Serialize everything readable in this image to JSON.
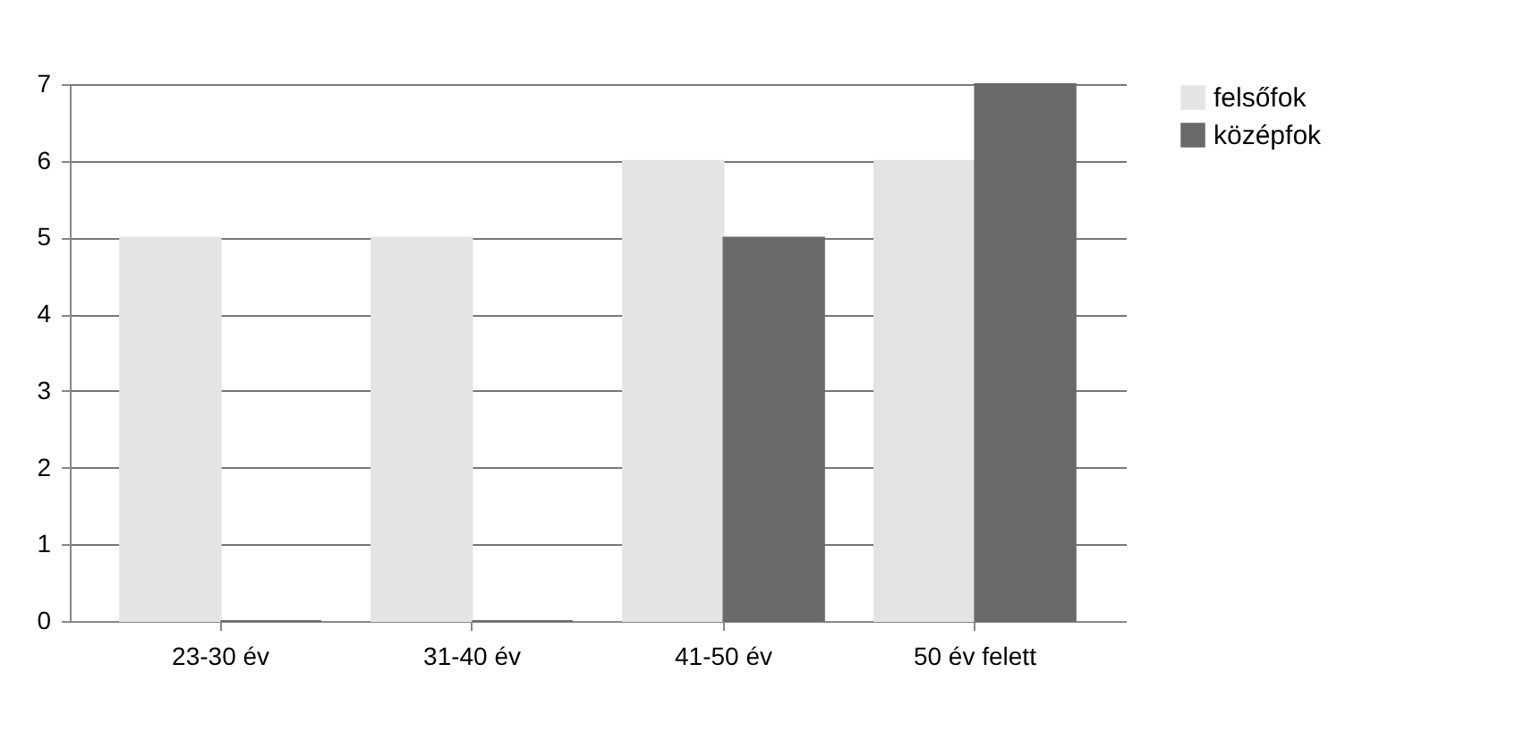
{
  "chart_data": {
    "type": "bar",
    "categories": [
      "23-30 év",
      "31-40 év",
      "41-50 év",
      "50 év felett"
    ],
    "series": [
      {
        "name": "felsőfok",
        "color": "#e4e4e4",
        "values": [
          5,
          5,
          6,
          6
        ]
      },
      {
        "name": "középfok",
        "color": "#6a6a6a",
        "values": [
          0,
          0,
          5,
          7
        ]
      }
    ],
    "ylim": [
      0,
      7
    ],
    "yticks": [
      0,
      1,
      2,
      3,
      4,
      5,
      6,
      7
    ],
    "grid": "y",
    "legend": "right"
  }
}
